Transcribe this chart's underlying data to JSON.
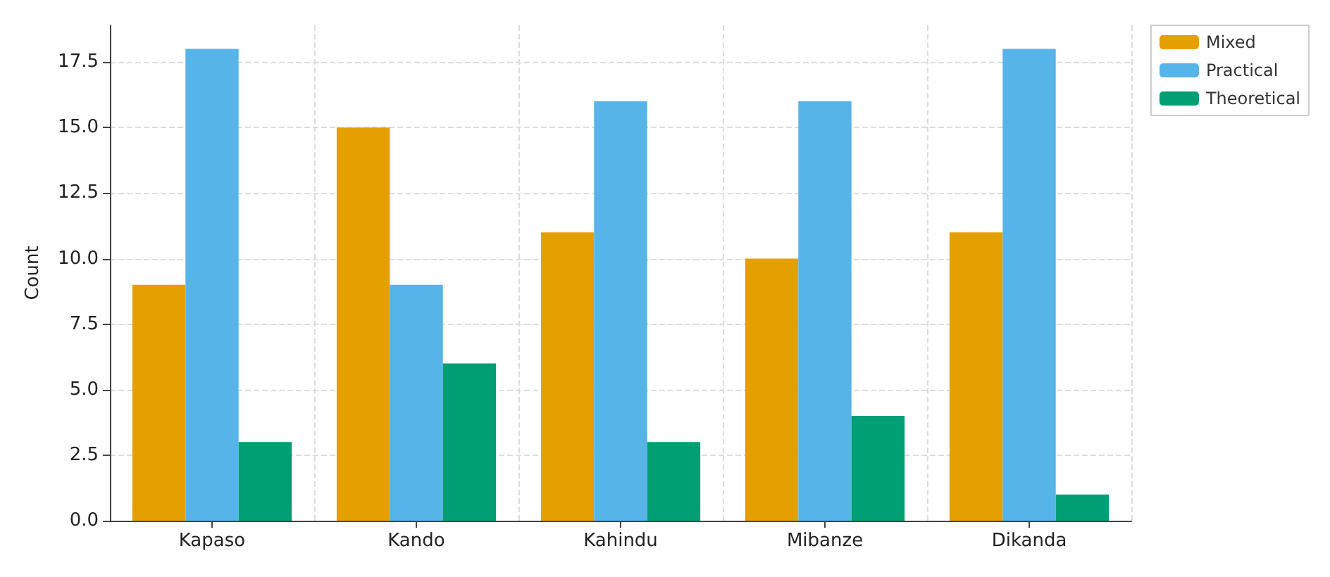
{
  "chart_data": {
    "type": "bar",
    "ylabel": "Count",
    "categories": [
      "Kapaso",
      "Kando",
      "Kahindu",
      "Mibanze",
      "Dikanda"
    ],
    "series": [
      {
        "name": "Mixed",
        "color": "#e69f00",
        "values": [
          9,
          15,
          11,
          10,
          11
        ]
      },
      {
        "name": "Practical",
        "color": "#56b4e9",
        "values": [
          18,
          9,
          16,
          16,
          18
        ]
      },
      {
        "name": "Theoretical",
        "color": "#009e73",
        "values": [
          3,
          6,
          3,
          4,
          1
        ]
      }
    ],
    "ylim": [
      0,
      18.9
    ],
    "yticks": [
      {
        "value": 0,
        "label": "0.0"
      },
      2.5,
      {
        "value": 5,
        "label": "5.0"
      },
      7.5,
      {
        "value": 10,
        "label": "10.0"
      },
      12.5,
      {
        "value": 15,
        "label": "15.0"
      },
      17.5
    ],
    "grid": true,
    "legend": "top right"
  }
}
